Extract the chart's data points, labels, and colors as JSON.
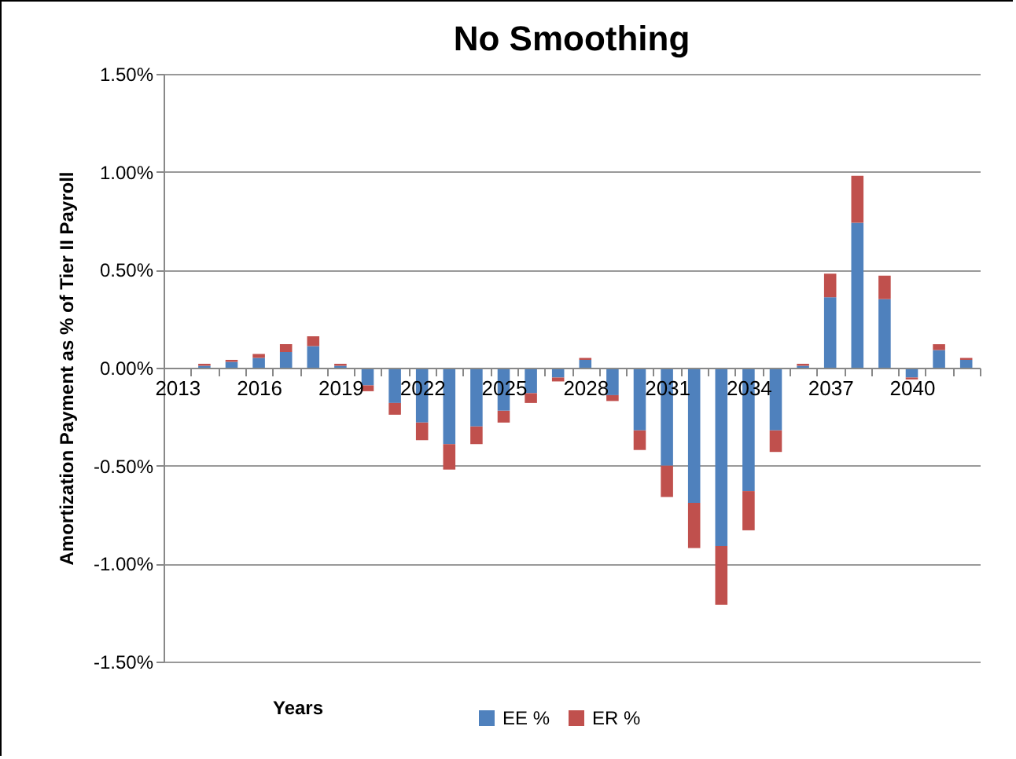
{
  "chart_data": {
    "type": "bar",
    "title": "No Smoothing",
    "xlabel": "Years",
    "ylabel": "Amortization Payment as % of Tier II Payroll",
    "categories": [
      "2013",
      null,
      null,
      "2016",
      null,
      null,
      "2019",
      null,
      null,
      "2022",
      null,
      null,
      "2025",
      null,
      null,
      "2028",
      null,
      null,
      "2031",
      null,
      null,
      "2034",
      null,
      null,
      "2037",
      null,
      null,
      "2040",
      null,
      null
    ],
    "stacked": true,
    "series": [
      {
        "name": "EE %",
        "color": "#4f81bd",
        "values": [
          0,
          0.01,
          0.03,
          0.05,
          0.08,
          0.11,
          0.01,
          -0.09,
          -0.18,
          -0.28,
          -0.39,
          -0.3,
          -0.22,
          -0.13,
          -0.05,
          0.04,
          -0.14,
          -0.32,
          -0.5,
          -0.69,
          -0.91,
          -0.63,
          -0.32,
          0.01,
          0.36,
          0.74,
          0.35,
          -0.05,
          0.09,
          0.04
        ]
      },
      {
        "name": "ER %",
        "color": "#c0504d",
        "values": [
          0,
          0.01,
          0.01,
          0.02,
          0.04,
          0.05,
          0.01,
          -0.03,
          -0.06,
          -0.09,
          -0.13,
          -0.09,
          -0.06,
          -0.05,
          -0.02,
          0.01,
          -0.03,
          -0.1,
          -0.16,
          -0.23,
          -0.3,
          -0.2,
          -0.11,
          0.01,
          0.12,
          0.24,
          0.12,
          -0.01,
          0.03,
          0.01
        ]
      }
    ],
    "ylim": [
      -1.5,
      1.5
    ],
    "yticks": [
      {
        "value": -1.5,
        "label": "-1.50%"
      },
      {
        "value": -1,
        "label": "-1.00%"
      },
      {
        "value": -0.5,
        "label": "-0.50%"
      },
      {
        "value": 0,
        "label": "0.00%"
      },
      {
        "value": 0.5,
        "label": "0.50%"
      },
      {
        "value": 1,
        "label": "1.00%"
      },
      {
        "value": 1.5,
        "label": "1.50%"
      }
    ],
    "grid": "y",
    "legend": "bottom"
  }
}
